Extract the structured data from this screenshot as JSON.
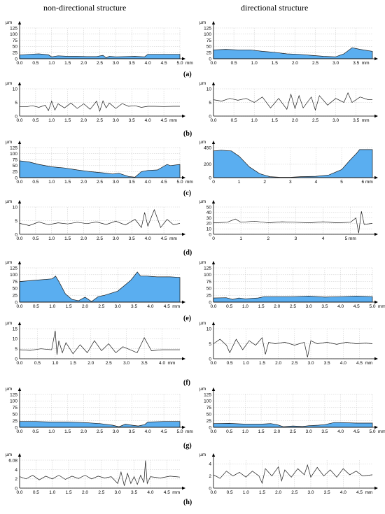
{
  "headers": {
    "left": "non-directional structure",
    "right": "directional structure"
  },
  "row_labels": [
    "(a)",
    "(b)",
    "(c)",
    "(d)",
    "(e)",
    "(f)",
    "(g)",
    "(h)"
  ],
  "colors": {
    "fill": "#5aaef0",
    "line": "#1a1a1a",
    "grid": "#c8c8c8",
    "axis": "#000000"
  },
  "chart_data": [
    {
      "id": "a-left",
      "type": "area",
      "unit": "µm",
      "xunit": "mm",
      "xticks": [
        0.0,
        0.5,
        1.0,
        1.5,
        2.0,
        2.5,
        3.0,
        3.5,
        4.0,
        4.5,
        5.0
      ],
      "xticklabels": [
        "0.0",
        "0.5",
        "1.0",
        "1.5",
        "2.0",
        "2.5",
        "3.0",
        "3.5",
        "4.0",
        "4.5",
        "5.0"
      ],
      "xlim": [
        0,
        5.0
      ],
      "yticks": [
        0,
        25,
        50,
        75,
        100,
        125
      ],
      "ylim": [
        0,
        125
      ],
      "x": [
        0,
        0.3,
        0.6,
        0.9,
        1.0,
        1.2,
        1.5,
        1.8,
        2.1,
        2.4,
        2.6,
        2.7,
        2.8,
        3.0,
        3.3,
        3.6,
        3.9,
        4.0,
        4.5,
        5.0
      ],
      "y": [
        15,
        18,
        20,
        16,
        8,
        12,
        10,
        10,
        9,
        9,
        14,
        4,
        10,
        8,
        9,
        10,
        8,
        18,
        18,
        18
      ]
    },
    {
      "id": "a-right",
      "type": "area",
      "unit": "µm",
      "xunit": "mm",
      "xticks": [
        0.0,
        0.5,
        1.0,
        1.5,
        2.0,
        2.5,
        3.0,
        3.5
      ],
      "xticklabels": [
        "0.0",
        "0.5",
        "1.0",
        "1.5",
        "2.0",
        "2.5",
        "3.0",
        "3.5"
      ],
      "xlim": [
        0,
        3.9
      ],
      "yticks": [
        0,
        25,
        50,
        75,
        100,
        125
      ],
      "ylim": [
        0,
        125
      ],
      "x": [
        0,
        0.3,
        0.6,
        0.9,
        1.2,
        1.5,
        1.8,
        2.1,
        2.4,
        2.7,
        3.0,
        3.2,
        3.4,
        3.6,
        3.9
      ],
      "y": [
        36,
        38,
        36,
        36,
        30,
        26,
        20,
        18,
        14,
        10,
        8,
        20,
        45,
        38,
        30
      ]
    },
    {
      "id": "b-left",
      "type": "line",
      "unit": "µm",
      "xunit": "mm",
      "xticks": [
        0.0,
        0.5,
        1.0,
        1.5,
        2.0,
        2.5,
        3.0,
        3.5,
        4.0,
        4.5
      ],
      "xticklabels": [
        "0.0",
        "0.5",
        "1.0",
        "1.5",
        "2.0",
        "2.5",
        "3.0",
        "3.5",
        "4.0",
        "4.5"
      ],
      "xlim": [
        0,
        5.0
      ],
      "yticks": [
        0,
        5,
        10
      ],
      "ylim": [
        0,
        10
      ],
      "x": [
        0,
        0.2,
        0.4,
        0.6,
        0.8,
        0.9,
        1.0,
        1.1,
        1.2,
        1.4,
        1.6,
        1.8,
        2.0,
        2.2,
        2.4,
        2.5,
        2.6,
        2.7,
        2.8,
        3.0,
        3.2,
        3.4,
        3.6,
        3.8,
        4.0,
        4.2,
        4.5,
        4.8,
        5.0
      ],
      "y": [
        3.5,
        3.4,
        3.8,
        3.2,
        4.0,
        2.0,
        5.5,
        2.2,
        4.5,
        3.0,
        4.8,
        2.8,
        4.5,
        2.5,
        5.5,
        1.8,
        5.6,
        3.0,
        4.8,
        2.8,
        4.6,
        3.6,
        3.8,
        3.2,
        3.6,
        3.6,
        3.5,
        3.6,
        3.6
      ]
    },
    {
      "id": "b-right",
      "type": "line",
      "unit": "µm",
      "xunit": "mm",
      "xticks": [
        0.0,
        0.5,
        1.0,
        1.5,
        2.0,
        2.5,
        3.0,
        3.5
      ],
      "xticklabels": [
        "0.0",
        "0.5",
        "1.0",
        "1.5",
        "2.0",
        "2.5",
        "3.0",
        "3.5"
      ],
      "xlim": [
        0,
        3.9
      ],
      "yticks": [
        0,
        5,
        10
      ],
      "ylim": [
        0,
        10
      ],
      "x": [
        0,
        0.2,
        0.4,
        0.6,
        0.8,
        1.0,
        1.2,
        1.4,
        1.6,
        1.8,
        1.9,
        2.0,
        2.1,
        2.2,
        2.4,
        2.5,
        2.6,
        2.8,
        3.0,
        3.2,
        3.3,
        3.4,
        3.6,
        3.8,
        3.9
      ],
      "y": [
        6,
        5.5,
        6.5,
        5.8,
        6.5,
        5,
        7,
        3,
        6.5,
        2.5,
        8,
        2.8,
        7.5,
        3,
        7,
        2.2,
        7.5,
        4,
        6.5,
        5,
        8.5,
        5,
        7,
        6,
        6
      ]
    },
    {
      "id": "c-left",
      "type": "area",
      "unit": "µm",
      "xunit": "mm",
      "xticks": [
        0.0,
        0.5,
        1.0,
        1.5,
        2.0,
        2.5,
        3.0,
        3.5,
        4.0,
        4.5,
        5.0
      ],
      "xticklabels": [
        "0.0",
        "0.5",
        "1.0",
        "1.5",
        "2.0",
        "2.5",
        "3.0",
        "3.5",
        "4.0",
        "4.5",
        "5.0"
      ],
      "xlim": [
        0,
        5.0
      ],
      "yticks": [
        0,
        25,
        50,
        75,
        100,
        125
      ],
      "ylim": [
        0,
        125
      ],
      "x": [
        0,
        0.3,
        0.6,
        1.0,
        1.4,
        1.8,
        2.2,
        2.6,
        2.9,
        3.1,
        3.4,
        3.6,
        3.8,
        4.0,
        4.3,
        4.6,
        4.7,
        5.0
      ],
      "y": [
        70,
        65,
        55,
        45,
        40,
        32,
        25,
        20,
        15,
        18,
        5,
        2,
        25,
        30,
        32,
        55,
        50,
        55
      ]
    },
    {
      "id": "c-right",
      "type": "area",
      "unit": "µm",
      "xunit": "mm",
      "xticks": [
        0,
        1,
        2,
        3,
        4,
        5,
        6
      ],
      "xticklabels": [
        "0",
        "1",
        "2",
        "3",
        "4",
        "5",
        "6 mm"
      ],
      "xlim": [
        0,
        6.2
      ],
      "yticks": [
        0,
        200,
        450
      ],
      "ylim": [
        0,
        450
      ],
      "x": [
        0,
        0.3,
        0.7,
        1.0,
        1.4,
        1.8,
        2.2,
        2.6,
        3.0,
        3.4,
        4.0,
        4.5,
        5.0,
        5.3,
        5.6,
        5.7,
        6.2
      ],
      "y": [
        400,
        410,
        400,
        320,
        160,
        60,
        15,
        5,
        5,
        15,
        20,
        40,
        120,
        250,
        370,
        420,
        420
      ]
    },
    {
      "id": "d-left",
      "type": "line",
      "unit": "µm",
      "xunit": "mm",
      "xticks": [
        0.0,
        0.5,
        1.0,
        1.5,
        2.0,
        2.5,
        3.0,
        3.5,
        4.0,
        4.5
      ],
      "xticklabels": [
        "0.0",
        "0.5",
        "1.0",
        "1.5",
        "2.0",
        "2.5",
        "3.0",
        "3.5",
        "4.0",
        "4.5"
      ],
      "xlim": [
        0,
        5.0
      ],
      "yticks": [
        0,
        5,
        10
      ],
      "ylim": [
        0,
        10
      ],
      "x": [
        0,
        0.3,
        0.6,
        0.9,
        1.2,
        1.5,
        1.8,
        2.1,
        2.4,
        2.7,
        3.0,
        3.3,
        3.6,
        3.8,
        3.9,
        4.0,
        4.2,
        4.4,
        4.6,
        4.8,
        5.0
      ],
      "y": [
        4,
        3.2,
        4.5,
        3.5,
        4.2,
        3.8,
        4.4,
        3.9,
        4.5,
        3.6,
        4.8,
        3.4,
        5.5,
        2.5,
        8,
        3,
        9,
        2.5,
        5.5,
        3.5,
        4
      ]
    },
    {
      "id": "d-right",
      "type": "line",
      "unit": "µm",
      "xunit": "mm",
      "xticks": [
        0,
        1,
        2,
        3,
        4,
        5
      ],
      "xticklabels": [
        "0",
        "1",
        "2",
        "3",
        "4",
        "5 mm"
      ],
      "xlim": [
        0,
        5.8
      ],
      "yticks": [
        0,
        10,
        20,
        30,
        40,
        50
      ],
      "ylim": [
        0,
        50
      ],
      "x": [
        0,
        0.5,
        0.8,
        1.0,
        1.5,
        2.0,
        2.5,
        3.0,
        3.5,
        4.0,
        4.5,
        5.0,
        5.2,
        5.3,
        5.4,
        5.5,
        5.8
      ],
      "y": [
        21,
        22,
        28,
        22,
        24,
        21,
        23,
        22,
        21,
        23,
        21,
        22,
        30,
        2,
        42,
        18,
        20
      ]
    },
    {
      "id": "e-left",
      "type": "area",
      "unit": "µm",
      "xunit": "mm",
      "xticks": [
        0.0,
        0.5,
        1.0,
        1.5,
        2.0,
        2.5,
        3.0,
        3.5,
        4.0,
        4.5
      ],
      "xticklabels": [
        "0.0",
        "0.5",
        "1.0",
        "1.5",
        "2.0",
        "2.5",
        "3.0",
        "3.5",
        "4.0",
        "4.5"
      ],
      "xlim": [
        0,
        4.9
      ],
      "yticks": [
        0,
        25,
        50,
        75,
        100,
        125
      ],
      "ylim": [
        0,
        125
      ],
      "x": [
        0,
        0.5,
        1.0,
        1.1,
        1.2,
        1.4,
        1.6,
        1.8,
        2.0,
        2.2,
        2.4,
        2.6,
        3.0,
        3.4,
        3.6,
        3.7,
        3.9,
        4.2,
        4.6,
        4.9
      ],
      "y": [
        75,
        80,
        85,
        95,
        75,
        30,
        10,
        5,
        18,
        2,
        20,
        25,
        40,
        80,
        110,
        95,
        95,
        92,
        92,
        90
      ]
    },
    {
      "id": "e-right",
      "type": "area",
      "unit": "µm",
      "xunit": "mm",
      "xticks": [
        0.0,
        0.5,
        1.0,
        1.5,
        2.0,
        2.5,
        3.0,
        3.5,
        4.0,
        4.5,
        5.0
      ],
      "xticklabels": [
        "0.0",
        "0.5",
        "1.0",
        "1.5",
        "2.0",
        "2.5",
        "3.0",
        "3.5",
        "4.0",
        "4.5",
        "5.0"
      ],
      "xlim": [
        0,
        5.0
      ],
      "yticks": [
        0,
        25,
        50,
        75,
        100,
        125
      ],
      "ylim": [
        0,
        125
      ],
      "x": [
        0,
        0.4,
        0.6,
        0.8,
        1.0,
        1.4,
        1.6,
        2.0,
        2.5,
        3.0,
        3.5,
        4.0,
        4.5,
        5.0
      ],
      "y": [
        15,
        16,
        10,
        15,
        12,
        15,
        20,
        20,
        20,
        22,
        18,
        20,
        22,
        20
      ]
    },
    {
      "id": "f-left",
      "type": "line",
      "unit": "µm",
      "xunit": "mm",
      "xticks": [
        0.0,
        0.5,
        1.0,
        1.5,
        2.0,
        2.5,
        3.0,
        3.5,
        4.0
      ],
      "xticklabels": [
        "0.0",
        "0.5",
        "1.0",
        "1.5",
        "2.0",
        "2.5",
        "3.0",
        "3.5",
        "4.0"
      ],
      "xlim": [
        0,
        4.5
      ],
      "yticks": [
        0,
        5,
        10,
        15
      ],
      "ylim": [
        0,
        15
      ],
      "x": [
        0,
        0.3,
        0.6,
        0.9,
        1.0,
        1.05,
        1.1,
        1.2,
        1.3,
        1.5,
        1.7,
        1.9,
        2.1,
        2.3,
        2.5,
        2.7,
        2.9,
        3.1,
        3.3,
        3.5,
        3.7,
        4.0,
        4.5
      ],
      "y": [
        4.5,
        4.2,
        5,
        4.5,
        14,
        2,
        9,
        3,
        8,
        2.5,
        7,
        3,
        9,
        4,
        7.5,
        3,
        6,
        4.5,
        3,
        10.5,
        4,
        4.5,
        4.5
      ]
    },
    {
      "id": "f-right",
      "type": "line",
      "unit": "µm",
      "xunit": "mm",
      "xticks": [
        0.0,
        0.5,
        1.0,
        1.5,
        2.0,
        2.5,
        3.0,
        3.5,
        4.0,
        4.5
      ],
      "xticklabels": [
        "0.0",
        "0.5",
        "1.0",
        "1.5",
        "2.0",
        "2.5",
        "3.0",
        "3.5",
        "4.0",
        "4.5"
      ],
      "xlim": [
        0,
        4.9
      ],
      "yticks": [
        0,
        5,
        10
      ],
      "ylim": [
        0,
        10
      ],
      "x": [
        0,
        0.2,
        0.4,
        0.5,
        0.7,
        0.9,
        1.1,
        1.3,
        1.5,
        1.6,
        1.7,
        1.9,
        2.2,
        2.5,
        2.8,
        2.9,
        3.0,
        3.2,
        3.5,
        3.8,
        4.1,
        4.4,
        4.7,
        4.9
      ],
      "y": [
        5,
        6.5,
        4.5,
        2,
        6.5,
        3,
        6,
        4.5,
        7,
        1.5,
        5.5,
        5,
        5.5,
        4.5,
        5.5,
        0.5,
        6,
        5,
        5.5,
        4.8,
        5.5,
        5,
        5.2,
        5
      ]
    },
    {
      "id": "g-left",
      "type": "area",
      "unit": "µm",
      "xunit": "mm",
      "xticks": [
        0.0,
        0.5,
        1.0,
        1.5,
        2.0,
        2.5,
        3.0,
        3.5,
        4.0,
        4.5,
        5.0
      ],
      "xticklabels": [
        "0.0",
        "0.5",
        "1.0",
        "1.5",
        "2.0",
        "2.5",
        "3.0",
        "3.5",
        "4.0",
        "4.5",
        "5.0"
      ],
      "xlim": [
        0,
        5.0
      ],
      "yticks": [
        0,
        25,
        50,
        75,
        100,
        125
      ],
      "ylim": [
        0,
        125
      ],
      "x": [
        0,
        0.5,
        1.0,
        1.5,
        2.0,
        2.5,
        2.9,
        3.1,
        3.3,
        3.5,
        3.7,
        3.9,
        4.0,
        4.5,
        5.0
      ],
      "y": [
        22,
        22,
        20,
        20,
        18,
        14,
        8,
        2,
        12,
        8,
        5,
        10,
        20,
        22,
        22
      ]
    },
    {
      "id": "g-right",
      "type": "area",
      "unit": "µm",
      "xunit": "mm",
      "xticks": [
        0.0,
        0.5,
        1.0,
        1.5,
        2.0,
        2.5,
        3.0,
        3.5,
        4.0,
        4.5,
        5.0
      ],
      "xticklabels": [
        "0.0",
        "0.5",
        "1.0",
        "1.5",
        "2.0",
        "2.5",
        "3.0",
        "3.5",
        "4.0",
        "4.5",
        "5.0"
      ],
      "xlim": [
        0,
        5.0
      ],
      "yticks": [
        0,
        25,
        50,
        75,
        100,
        125
      ],
      "ylim": [
        0,
        125
      ],
      "x": [
        0,
        0.5,
        1.0,
        1.5,
        1.8,
        2.0,
        2.2,
        2.5,
        2.8,
        3.0,
        3.3,
        3.5,
        3.8,
        4.0,
        4.5,
        5.0
      ],
      "y": [
        14,
        15,
        12,
        12,
        14,
        10,
        2,
        5,
        3,
        6,
        8,
        10,
        18,
        18,
        16,
        16
      ]
    },
    {
      "id": "h-left",
      "type": "line",
      "unit": "µm",
      "xunit": "mm",
      "xticks": [
        0.0,
        0.5,
        1.0,
        1.5,
        2.0,
        2.5,
        3.0,
        3.5,
        4.0,
        4.5
      ],
      "xticklabels": [
        "0.0",
        "0.5",
        "1.0",
        "1.5",
        "2.0",
        "2.5",
        "3.0",
        "3.5",
        "4.0",
        "4.5"
      ],
      "xlim": [
        0,
        4.9
      ],
      "ytickvals": [
        0,
        2,
        4,
        6.08
      ],
      "yticklabels": [
        "0",
        "2",
        "4",
        "6.08"
      ],
      "ylim": [
        0,
        6.08
      ],
      "x": [
        0,
        0.2,
        0.4,
        0.6,
        0.8,
        1.0,
        1.2,
        1.4,
        1.6,
        1.8,
        2.0,
        2.2,
        2.4,
        2.6,
        2.8,
        3.0,
        3.1,
        3.2,
        3.3,
        3.4,
        3.5,
        3.6,
        3.7,
        3.8,
        3.85,
        3.9,
        4.0,
        4.3,
        4.6,
        4.9
      ],
      "y": [
        2.5,
        2.0,
        2.8,
        1.8,
        2.6,
        2.0,
        2.8,
        1.9,
        2.6,
        2.1,
        2.8,
        2.0,
        2.6,
        2.2,
        2.5,
        1.0,
        3.5,
        0.5,
        3.2,
        1.0,
        2.5,
        0.8,
        2.8,
        1.2,
        6.0,
        1.0,
        2.5,
        2.2,
        2.6,
        2.4
      ]
    },
    {
      "id": "h-right",
      "type": "line",
      "unit": "µm",
      "xunit": "mm",
      "xticks": [
        0.0,
        0.5,
        1.0,
        1.5,
        2.0,
        2.5,
        3.0,
        3.5,
        4.0,
        4.5
      ],
      "xticklabels": [
        "0.0",
        "0.5",
        "1.0",
        "1.5",
        "2.0",
        "2.5",
        "3.0",
        "3.5",
        "4.0",
        "4.5"
      ],
      "xlim": [
        0,
        4.9
      ],
      "yticks": [
        0,
        2,
        4
      ],
      "ylim": [
        0,
        4.6
      ],
      "x": [
        0,
        0.2,
        0.4,
        0.6,
        0.8,
        1.0,
        1.2,
        1.4,
        1.5,
        1.6,
        1.8,
        2.0,
        2.1,
        2.2,
        2.4,
        2.6,
        2.8,
        2.9,
        3.0,
        3.2,
        3.4,
        3.6,
        3.8,
        4.0,
        4.2,
        4.4,
        4.6,
        4.9
      ],
      "y": [
        2.2,
        1.6,
        2.8,
        2.0,
        2.6,
        1.8,
        2.8,
        2.0,
        0.8,
        3.2,
        2.0,
        3.5,
        1.2,
        3.0,
        1.8,
        3.2,
        2.2,
        3.8,
        1.8,
        3.4,
        2.0,
        3.0,
        1.8,
        3.2,
        2.2,
        2.8,
        2.0,
        2.2
      ]
    }
  ]
}
